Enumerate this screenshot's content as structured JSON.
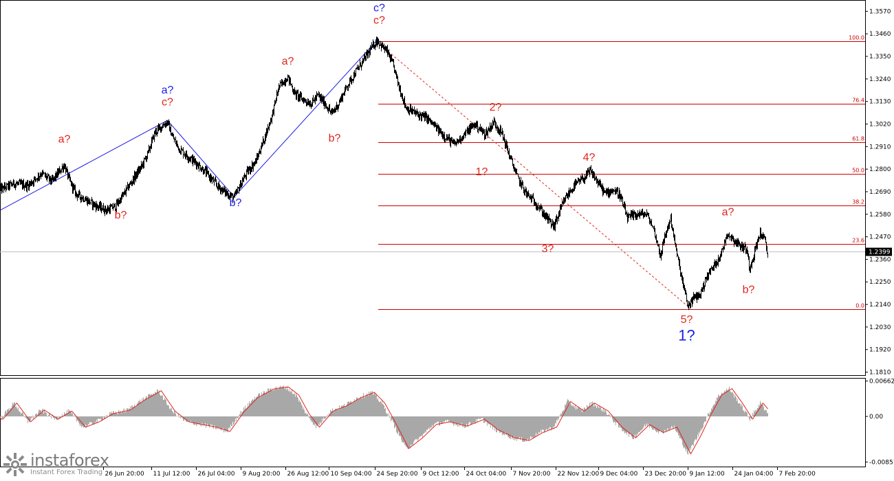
{
  "chart_data": [
    {
      "type": "line",
      "price_axis": {
        "labels": [
          "1.3570",
          "1.3460",
          "1.3350",
          "1.3240",
          "1.3130",
          "1.3020",
          "1.2910",
          "1.2800",
          "1.2690",
          "1.2580",
          "1.2470",
          "1.2360",
          "1.2250",
          "1.2140",
          "1.2030",
          "1.1920",
          "1.1810"
        ],
        "current_price": "1.2399",
        "ylim": [
          1.1795,
          1.3625
        ]
      },
      "time_axis": {
        "labels": [
          "26 Jun 20:00",
          "11 Jul 12:00",
          "26 Jul 04:00",
          "9 Aug 20:00",
          "26 Aug 12:00",
          "10 Sep 04:00",
          "24 Sep 20:00",
          "9 Oct 12:00",
          "24 Oct 04:00",
          "7 Nov 20:00",
          "22 Nov 12:00",
          "9 Dec 04:00",
          "23 Dec 20:00",
          "9 Jan 12:00",
          "24 Jan 04:00",
          "7 Feb 20:00"
        ],
        "label_index": [
          150,
          220,
          285,
          350,
          415,
          478,
          545,
          612,
          675,
          743,
          808,
          870,
          935,
          1000,
          1065,
          1130
        ]
      },
      "price_anchors": [
        [
          0,
          1.27
        ],
        [
          20,
          1.273
        ],
        [
          40,
          1.272
        ],
        [
          60,
          1.278
        ],
        [
          75,
          1.274
        ],
        [
          93,
          1.282
        ],
        [
          100,
          1.275
        ],
        [
          110,
          1.268
        ],
        [
          125,
          1.265
        ],
        [
          140,
          1.262
        ],
        [
          155,
          1.26
        ],
        [
          168,
          1.262
        ],
        [
          180,
          1.268
        ],
        [
          195,
          1.276
        ],
        [
          205,
          1.281
        ],
        [
          215,
          1.288
        ],
        [
          225,
          1.298
        ],
        [
          235,
          1.301
        ],
        [
          243,
          1.303
        ],
        [
          250,
          1.296
        ],
        [
          260,
          1.29
        ],
        [
          270,
          1.287
        ],
        [
          285,
          1.283
        ],
        [
          300,
          1.278
        ],
        [
          315,
          1.272
        ],
        [
          330,
          1.268
        ],
        [
          340,
          1.266
        ],
        [
          350,
          1.273
        ],
        [
          360,
          1.279
        ],
        [
          372,
          1.284
        ],
        [
          385,
          1.296
        ],
        [
          395,
          1.306
        ],
        [
          405,
          1.32
        ],
        [
          418,
          1.325
        ],
        [
          428,
          1.317
        ],
        [
          440,
          1.314
        ],
        [
          452,
          1.312
        ],
        [
          462,
          1.316
        ],
        [
          472,
          1.312
        ],
        [
          482,
          1.307
        ],
        [
          492,
          1.312
        ],
        [
          505,
          1.321
        ],
        [
          518,
          1.328
        ],
        [
          530,
          1.334
        ],
        [
          540,
          1.339
        ],
        [
          548,
          1.343
        ],
        [
          555,
          1.34
        ],
        [
          563,
          1.337
        ],
        [
          572,
          1.33
        ],
        [
          580,
          1.32
        ],
        [
          590,
          1.31
        ],
        [
          605,
          1.307
        ],
        [
          620,
          1.305
        ],
        [
          640,
          1.298
        ],
        [
          660,
          1.292
        ],
        [
          675,
          1.297
        ],
        [
          690,
          1.302
        ],
        [
          705,
          1.297
        ],
        [
          718,
          1.303
        ],
        [
          730,
          1.297
        ],
        [
          740,
          1.287
        ],
        [
          752,
          1.276
        ],
        [
          765,
          1.268
        ],
        [
          780,
          1.263
        ],
        [
          795,
          1.256
        ],
        [
          805,
          1.252
        ],
        [
          812,
          1.258
        ],
        [
          822,
          1.266
        ],
        [
          835,
          1.272
        ],
        [
          850,
          1.276
        ],
        [
          858,
          1.279
        ],
        [
          870,
          1.273
        ],
        [
          880,
          1.268
        ],
        [
          890,
          1.27
        ],
        [
          900,
          1.268
        ],
        [
          912,
          1.256
        ],
        [
          925,
          1.258
        ],
        [
          940,
          1.258
        ],
        [
          950,
          1.251
        ],
        [
          960,
          1.238
        ],
        [
          968,
          1.249
        ],
        [
          975,
          1.256
        ],
        [
          983,
          1.24
        ],
        [
          992,
          1.225
        ],
        [
          1000,
          1.213
        ],
        [
          1008,
          1.217
        ],
        [
          1018,
          1.219
        ],
        [
          1028,
          1.228
        ],
        [
          1040,
          1.234
        ],
        [
          1050,
          1.24
        ],
        [
          1057,
          1.249
        ],
        [
          1065,
          1.246
        ],
        [
          1075,
          1.243
        ],
        [
          1085,
          1.241
        ],
        [
          1090,
          1.232
        ],
        [
          1097,
          1.24
        ],
        [
          1105,
          1.249
        ],
        [
          1112,
          1.245
        ],
        [
          1116,
          1.238
        ]
      ]
    },
    {
      "type": "area",
      "oscillator_axis": {
        "labels": [
          "0.00662",
          "0.00",
          "-0.00851"
        ],
        "ylim": [
          -0.0095,
          0.0072
        ]
      },
      "osc_anchors": [
        [
          0,
          -0.0005
        ],
        [
          20,
          0.0025
        ],
        [
          40,
          -0.001
        ],
        [
          60,
          0.0012
        ],
        [
          80,
          -0.0005
        ],
        [
          100,
          0.001
        ],
        [
          120,
          -0.002
        ],
        [
          140,
          -0.001
        ],
        [
          160,
          0.0005
        ],
        [
          185,
          0.0012
        ],
        [
          205,
          0.003
        ],
        [
          230,
          0.0048
        ],
        [
          250,
          0.001
        ],
        [
          270,
          -0.001
        ],
        [
          290,
          -0.0015
        ],
        [
          310,
          -0.002
        ],
        [
          330,
          -0.0028
        ],
        [
          350,
          0.0008
        ],
        [
          370,
          0.0035
        ],
        [
          395,
          0.0052
        ],
        [
          415,
          0.0055
        ],
        [
          430,
          0.004
        ],
        [
          445,
          0.0005
        ],
        [
          460,
          -0.002
        ],
        [
          480,
          0.001
        ],
        [
          500,
          0.002
        ],
        [
          520,
          0.0035
        ],
        [
          540,
          0.0045
        ],
        [
          555,
          0.0025
        ],
        [
          570,
          -0.001
        ],
        [
          590,
          -0.006
        ],
        [
          610,
          -0.004
        ],
        [
          630,
          -0.0015
        ],
        [
          650,
          -0.001
        ],
        [
          675,
          -0.0018
        ],
        [
          700,
          -0.0005
        ],
        [
          720,
          -0.0025
        ],
        [
          745,
          -0.004
        ],
        [
          765,
          -0.0045
        ],
        [
          785,
          -0.003
        ],
        [
          805,
          -0.002
        ],
        [
          825,
          0.0028
        ],
        [
          845,
          0.001
        ],
        [
          860,
          0.0025
        ],
        [
          880,
          0.001
        ],
        [
          900,
          -0.002
        ],
        [
          920,
          -0.004
        ],
        [
          940,
          -0.0015
        ],
        [
          960,
          -0.003
        ],
        [
          980,
          -0.002
        ],
        [
          1000,
          -0.007
        ],
        [
          1015,
          -0.0035
        ],
        [
          1030,
          0.0005
        ],
        [
          1045,
          0.004
        ],
        [
          1060,
          0.0052
        ],
        [
          1075,
          0.0025
        ],
        [
          1090,
          -0.0005
        ],
        [
          1105,
          0.0025
        ],
        [
          1116,
          0.0008
        ]
      ]
    }
  ],
  "fibonacci": [
    {
      "label": "100.0",
      "price": 1.3423
    },
    {
      "label": "76.4",
      "price": 1.3118
    },
    {
      "label": "61.8",
      "price": 1.293
    },
    {
      "label": "50.0",
      "price": 1.2777
    },
    {
      "label": "38.2",
      "price": 1.2624
    },
    {
      "label": "23.6",
      "price": 1.2436
    },
    {
      "label": "0.0",
      "price": 1.2118
    }
  ],
  "wave_labels": [
    {
      "text": "a?",
      "cls": "wave-red",
      "i": 93,
      "p": 1.293
    },
    {
      "text": "b?",
      "cls": "wave-red",
      "i": 175,
      "p": 1.256
    },
    {
      "text": "a?",
      "cls": "wave-blue",
      "i": 243,
      "p": 1.317
    },
    {
      "text": "c?",
      "cls": "wave-red",
      "i": 243,
      "p": 1.311
    },
    {
      "text": "b?",
      "cls": "wave-blue",
      "i": 342,
      "p": 1.262
    },
    {
      "text": "a?",
      "cls": "wave-red",
      "i": 418,
      "p": 1.331
    },
    {
      "text": "b?",
      "cls": "wave-red",
      "i": 486,
      "p": 1.2935
    },
    {
      "text": "c?",
      "cls": "wave-blue",
      "i": 551,
      "p": 1.357
    },
    {
      "text": "c?",
      "cls": "wave-red",
      "i": 551,
      "p": 1.351
    },
    {
      "text": "2?",
      "cls": "wave-red",
      "i": 720,
      "p": 1.3085
    },
    {
      "text": "1?",
      "cls": "wave-red",
      "i": 700,
      "p": 1.277
    },
    {
      "text": "4?",
      "cls": "wave-red",
      "i": 856,
      "p": 1.284
    },
    {
      "text": "3?",
      "cls": "wave-red",
      "i": 796,
      "p": 1.2395
    },
    {
      "text": "5?",
      "cls": "wave-red",
      "i": 998,
      "p": 1.205
    },
    {
      "text": "1?",
      "cls": "wave-big",
      "i": 998,
      "p": 1.1965
    },
    {
      "text": "a?",
      "cls": "wave-red",
      "i": 1058,
      "p": 1.2575
    },
    {
      "text": "b?",
      "cls": "wave-red",
      "i": 1088,
      "p": 1.2195
    }
  ],
  "brand": {
    "name": "instaforex",
    "tagline": "Instant Forex Trading"
  }
}
